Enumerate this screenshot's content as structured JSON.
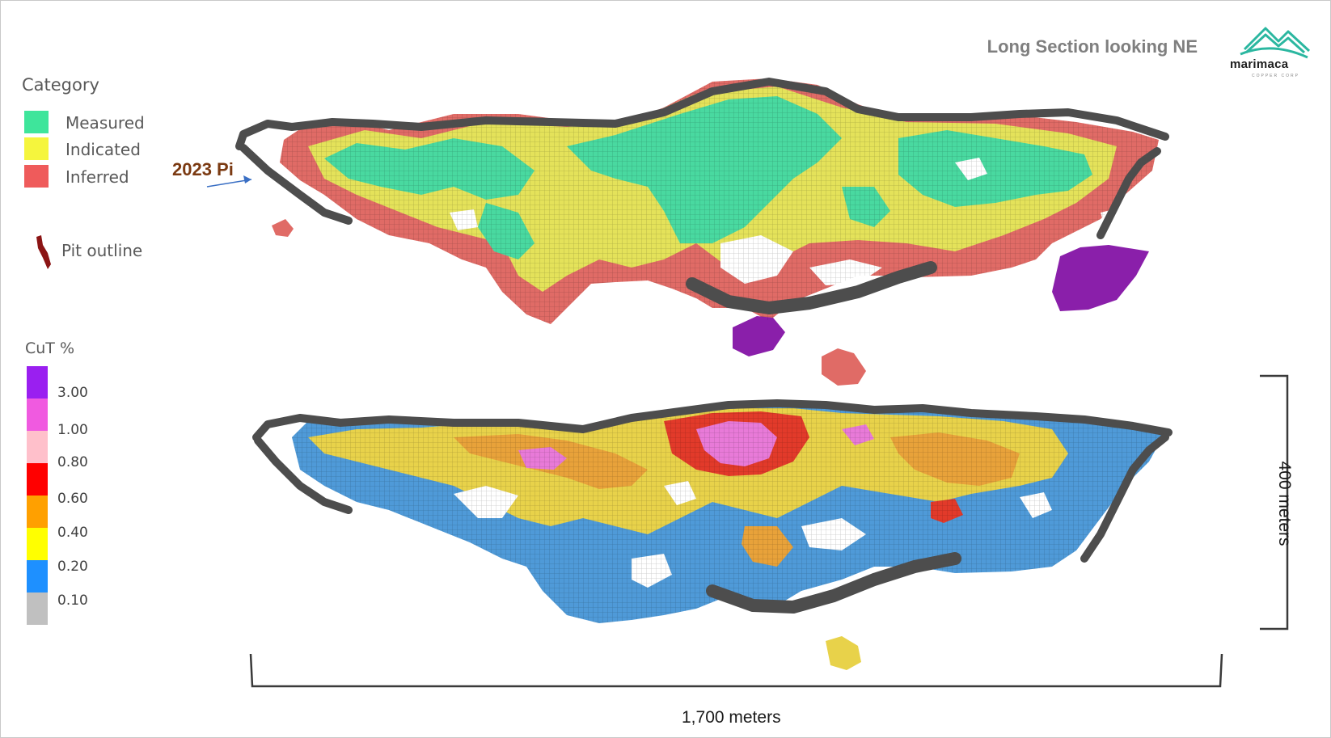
{
  "title": "Long Section looking NE",
  "brand": {
    "name": "marimaca",
    "tagline": "COPPER CORP",
    "logo_color": "#2bb7a0"
  },
  "category_legend": {
    "title": "Category",
    "items": [
      {
        "label": "Measured",
        "color": "#3ee59b"
      },
      {
        "label": "Indicated",
        "color": "#f5f53d"
      },
      {
        "label": "Inferred",
        "color": "#ef5b5b"
      }
    ]
  },
  "pit_legend": {
    "label": "Pit outline",
    "color": "#8b1414"
  },
  "grade_legend": {
    "title": "CuT %",
    "bins": [
      {
        "color": "#9a1ff0",
        "label": "3.00"
      },
      {
        "color": "#f05ae0",
        "label": "1.00"
      },
      {
        "color": "#ffc0cb",
        "label": "0.80"
      },
      {
        "color": "#ff0000",
        "label": "0.60"
      },
      {
        "color": "#ffa000",
        "label": "0.40"
      },
      {
        "color": "#ffff00",
        "label": "0.20"
      },
      {
        "color": "#1e90ff",
        "label": "0.10"
      },
      {
        "color": "#c0c0c0",
        "label": ""
      }
    ]
  },
  "annotation": {
    "label": "2023 Pi",
    "color": "#7b3a12",
    "arrow_color": "#3a6fc4"
  },
  "scale": {
    "width_label": "1,700 meters",
    "height_label": "400 meters"
  },
  "colors": {
    "measured": "#49d9a0",
    "indicated": "#e4e25a",
    "inferred": "#e06b66",
    "high_grade": "#8a1faa",
    "pit": "#4d4d4d",
    "grade_low": "#4f9ad8",
    "grade_mid": "#e8d24a",
    "grade_orange": "#e8a23a",
    "grade_red": "#e23a2a",
    "grade_pink": "#e87ad8"
  }
}
